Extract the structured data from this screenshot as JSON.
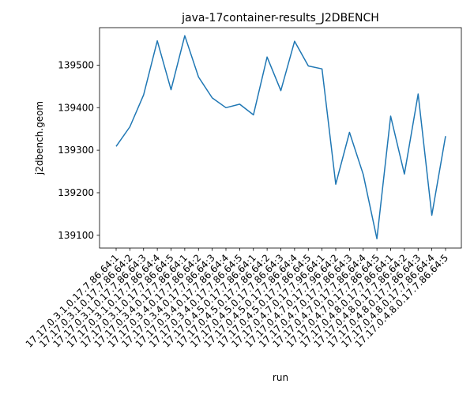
{
  "chart_data": {
    "type": "line",
    "title": "java-17container-results_J2DBENCH",
    "xlabel": "run",
    "ylabel": "j2dbench.geom",
    "ylim": [
      139070,
      139588
    ],
    "yticks": [
      139100,
      139200,
      139300,
      139400,
      139500
    ],
    "grid": false,
    "line_color": "#1f77b4",
    "categories": [
      "17.17.0.3.1.0.17.7.86.64:1",
      "17.17.0.3.1.0.17.7.86.64:2",
      "17.17.0.3.1.0.17.7.86.64:3",
      "17.17.0.3.1.0.17.7.86.64:4",
      "17.17.0.3.1.0.17.7.86.64:5",
      "17.17.0.3.4.0.17.7.86.64:1",
      "17.17.0.3.4.0.17.7.86.64:2",
      "17.17.0.3.4.0.17.7.86.64:3",
      "17.17.0.3.4.0.17.7.86.64:4",
      "17.17.0.3.4.0.17.7.86.64:5",
      "17.17.0.4.5.0.17.7.86.64:1",
      "17.17.0.4.5.0.17.7.86.64:2",
      "17.17.0.4.5.0.17.7.86.64:3",
      "17.17.0.4.5.0.17.7.86.64:4",
      "17.17.0.4.5.0.17.7.86.64:5",
      "17.17.0.4.7.0.17.7.96.64:1",
      "17.17.0.4.7.0.17.7.96.64:2",
      "17.17.0.4.7.0.17.7.86.64:3",
      "17.17.0.4.7.0.17.7.86.64:4",
      "17.17.0.4.7.0.17.7.86.64:5",
      "17.17.0.4.8.0.17.7.86.64:1",
      "17.17.0.4.8.0.17.7.86.64:2",
      "17.17.0.4.8.0.17.7.86.64:3",
      "17.17.0.4.8.0.17.7.86.64:4",
      "17.17.0.4.8.0.17.7.86.64:5"
    ],
    "values": [
      139309,
      139355,
      139430,
      139557,
      139442,
      139569,
      139472,
      139423,
      139400,
      139408,
      139383,
      139519,
      139440,
      139556,
      139498,
      139491,
      139220,
      139342,
      139243,
      139092,
      139380,
      139244,
      139432,
      139147,
      139333
    ]
  }
}
